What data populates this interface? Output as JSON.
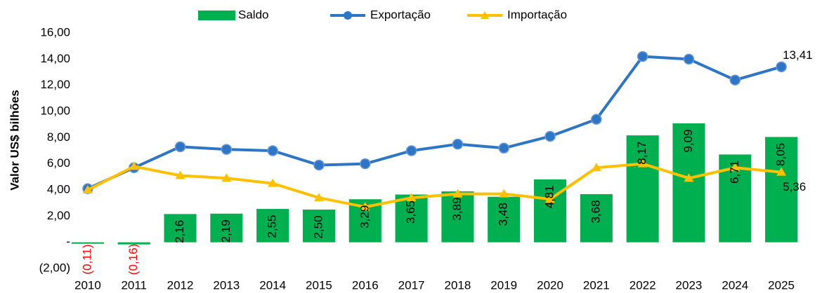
{
  "chart_data": {
    "type": "combo",
    "y_axis_label": "Valor US$ bilhões",
    "categories": [
      "2010",
      "2011",
      "2012",
      "2013",
      "2014",
      "2015",
      "2016",
      "2017",
      "2018",
      "2019",
      "2020",
      "2021",
      "2022",
      "2023",
      "2024",
      "2025"
    ],
    "ylim": [
      -2,
      16
    ],
    "yticks": [
      {
        "value": -2,
        "label": "(2,00)"
      },
      {
        "value": 0,
        "label": "-"
      },
      {
        "value": 2,
        "label": "2,00"
      },
      {
        "value": 4,
        "label": "4,00"
      },
      {
        "value": 6,
        "label": "6,00"
      },
      {
        "value": 8,
        "label": "8,00"
      },
      {
        "value": 10,
        "label": "10,00"
      },
      {
        "value": 12,
        "label": "12,00"
      },
      {
        "value": 14,
        "label": "14,00"
      },
      {
        "value": 16,
        "label": "16,00"
      }
    ],
    "negative_label_color": "#ff0000",
    "series": [
      {
        "name": "Saldo",
        "type": "bar",
        "color": "#00b050",
        "values": [
          -0.11,
          -0.16,
          2.16,
          2.19,
          2.55,
          2.5,
          3.29,
          3.65,
          3.89,
          3.48,
          4.81,
          3.68,
          8.17,
          9.09,
          6.71,
          8.05
        ],
        "value_labels": [
          "(0,11)",
          "(0,16)",
          "2,16",
          "2,19",
          "2,55",
          "2,50",
          "3,29",
          "3,65",
          "3,89",
          "3,48",
          "4,81",
          "3,68",
          "8,17",
          "9,09",
          "6,71",
          "8,05"
        ]
      },
      {
        "name": "Exportação",
        "type": "line",
        "marker": "circle",
        "color": "#2e75c6",
        "values": [
          4.1,
          5.7,
          7.3,
          7.1,
          7.0,
          5.9,
          6.0,
          7.0,
          7.5,
          7.2,
          8.1,
          9.4,
          14.2,
          14.0,
          12.4,
          13.41
        ],
        "value_labels": [
          null,
          null,
          null,
          null,
          null,
          null,
          null,
          null,
          null,
          null,
          null,
          null,
          null,
          null,
          null,
          "13,41"
        ]
      },
      {
        "name": "Importação",
        "type": "line",
        "marker": "triangle",
        "color": "#ffc000",
        "values": [
          4.0,
          5.8,
          5.1,
          4.9,
          4.5,
          3.4,
          2.7,
          3.4,
          3.7,
          3.7,
          3.3,
          5.7,
          6.0,
          4.9,
          5.7,
          5.36
        ],
        "value_labels": [
          null,
          null,
          null,
          null,
          null,
          null,
          null,
          null,
          null,
          null,
          null,
          null,
          null,
          null,
          null,
          "5,36"
        ]
      }
    ]
  }
}
